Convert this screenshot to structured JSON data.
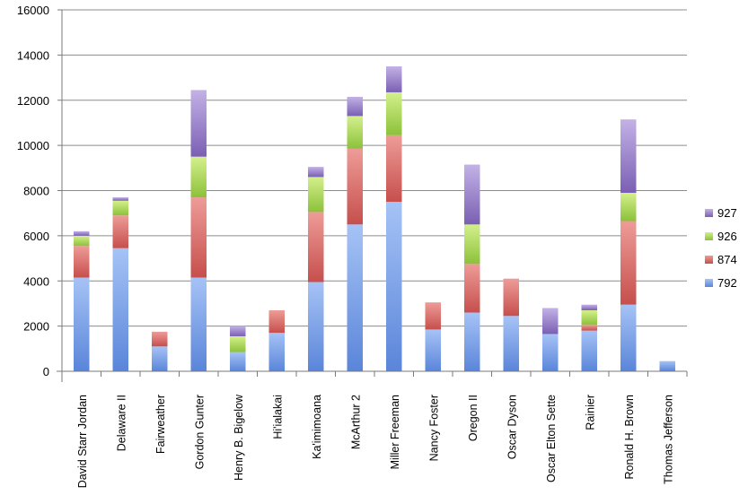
{
  "chart_data": {
    "type": "bar",
    "stacked": true,
    "title": "",
    "xlabel": "",
    "ylabel": "",
    "ylim": [
      0,
      16000
    ],
    "yticks": [
      0,
      2000,
      4000,
      6000,
      8000,
      10000,
      12000,
      14000,
      16000
    ],
    "grid": "horizontal",
    "legend_position": "right",
    "categories": [
      "David Starr Jordan",
      "Delaware II",
      "Fairweather",
      "Gordon Gunter",
      "Henry B. Bigelow",
      "Hi'ialakai",
      "Ka'imimoana",
      "McArthur 2",
      "Miller Freeman",
      "Nancy Foster",
      "Oregon II",
      "Oscar Dyson",
      "Oscar Elton Sette",
      "Rainier",
      "Ronald H. Brown",
      "Thomas Jefferson"
    ],
    "series": [
      {
        "name": "792",
        "color": "#6f98e6",
        "values": [
          4150,
          5450,
          1100,
          4150,
          850,
          1700,
          3950,
          6500,
          7500,
          1850,
          2600,
          2450,
          1650,
          1800,
          2950,
          450
        ]
      },
      {
        "name": "874",
        "color": "#d96b68",
        "values": [
          1400,
          1450,
          650,
          3550,
          0,
          1000,
          3100,
          3350,
          2950,
          1200,
          2150,
          1650,
          0,
          250,
          3700,
          0
        ]
      },
      {
        "name": "926",
        "color": "#a5d34f",
        "values": [
          450,
          650,
          0,
          1800,
          700,
          0,
          1550,
          1450,
          1900,
          0,
          1750,
          0,
          0,
          650,
          1250,
          0
        ]
      },
      {
        "name": "927",
        "color": "#9479c6",
        "values": [
          200,
          150,
          0,
          2950,
          450,
          0,
          450,
          850,
          1150,
          0,
          2650,
          0,
          1150,
          250,
          3250,
          0
        ]
      }
    ]
  }
}
